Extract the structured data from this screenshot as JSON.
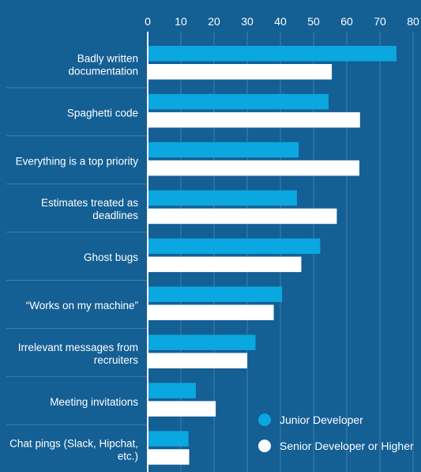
{
  "chart_data": {
    "type": "bar",
    "orientation": "horizontal",
    "title": "",
    "xlabel": "",
    "ylabel": "",
    "xlim": [
      0,
      80
    ],
    "x_ticks": [
      0,
      10,
      20,
      30,
      40,
      50,
      60,
      70,
      80
    ],
    "axis_position": "top",
    "grid": true,
    "legend_position": "bottom-right",
    "categories": [
      [
        "Badly written",
        "documentation"
      ],
      [
        "Spaghetti code"
      ],
      [
        "Everything is a top priority"
      ],
      [
        "Estimates treated as",
        "deadlines"
      ],
      [
        "Ghost bugs"
      ],
      [
        "“Works on my machine”"
      ],
      [
        "Irrelevant messages from",
        "recruiters"
      ],
      [
        "Meeting invitations"
      ],
      [
        "Chat pings (Slack, Hipchat,",
        "etc.)"
      ]
    ],
    "series": [
      {
        "name": "Junior Developer",
        "color": "#0aa7e0",
        "values": [
          75,
          54.5,
          45.5,
          45,
          52,
          40.5,
          32.5,
          14.5,
          12.3
        ]
      },
      {
        "name": "Senior Developer or Higher",
        "color": "#ffffff",
        "values": [
          55.5,
          64,
          63.8,
          57,
          46.3,
          38,
          30,
          20.5,
          12.5
        ]
      }
    ],
    "colors": {
      "background": "#145f94",
      "gridline": "#3f7fb0",
      "axis": "#ffffff",
      "text": "#ffffff"
    }
  }
}
